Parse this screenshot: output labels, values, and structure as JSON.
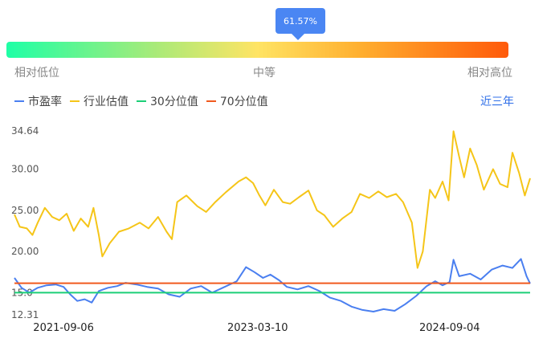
{
  "percentile": {
    "label": "61.57%",
    "value": 0.6157
  },
  "scale": {
    "low": "相对低位",
    "mid": "中等",
    "high": "相对高位"
  },
  "legend": [
    {
      "label": "市盈率",
      "color": "#4a7ff0"
    },
    {
      "label": "行业估值",
      "color": "#f5c518"
    },
    {
      "label": "30分位值",
      "color": "#1ccf77"
    },
    {
      "label": "70分位值",
      "color": "#f05a1e"
    }
  ],
  "range_label": "近三年",
  "chart_data": {
    "type": "line",
    "xlim": [
      "2021-04-20",
      "2025-04-20"
    ],
    "ylim": [
      12.31,
      34.64
    ],
    "y_ticks": [
      34.64,
      30.0,
      25.0,
      20.0,
      15.0,
      12.31
    ],
    "y_tick_labels": [
      "34.64",
      "30.00",
      "25.00",
      "20.00",
      "15.0",
      "12.31"
    ],
    "x_ticks": [
      "2021-09-06",
      "2023-03-10",
      "2024-09-04"
    ],
    "series": [
      {
        "name": "市盈率",
        "color": "#4a7ff0",
        "points": [
          [
            "2021-04-20",
            16.8
          ],
          [
            "2021-05-10",
            15.6
          ],
          [
            "2021-06-01",
            15.0
          ],
          [
            "2021-06-25",
            15.6
          ],
          [
            "2021-07-20",
            15.9
          ],
          [
            "2021-08-15",
            16.0
          ],
          [
            "2021-09-06",
            15.7
          ],
          [
            "2021-09-25",
            14.8
          ],
          [
            "2021-10-15",
            14.0
          ],
          [
            "2021-11-05",
            14.2
          ],
          [
            "2021-11-25",
            13.8
          ],
          [
            "2021-12-15",
            15.2
          ],
          [
            "2022-01-10",
            15.6
          ],
          [
            "2022-02-05",
            15.8
          ],
          [
            "2022-03-01",
            16.2
          ],
          [
            "2022-04-01",
            16.0
          ],
          [
            "2022-05-01",
            15.7
          ],
          [
            "2022-06-01",
            15.5
          ],
          [
            "2022-07-01",
            14.8
          ],
          [
            "2022-08-01",
            14.5
          ],
          [
            "2022-09-01",
            15.5
          ],
          [
            "2022-10-01",
            15.8
          ],
          [
            "2022-11-01",
            15.0
          ],
          [
            "2022-12-01",
            15.6
          ],
          [
            "2023-01-10",
            16.4
          ],
          [
            "2023-02-05",
            18.1
          ],
          [
            "2023-03-01",
            17.5
          ],
          [
            "2023-03-25",
            16.8
          ],
          [
            "2023-04-15",
            17.2
          ],
          [
            "2023-05-10",
            16.5
          ],
          [
            "2023-06-01",
            15.7
          ],
          [
            "2023-07-01",
            15.4
          ],
          [
            "2023-08-01",
            15.8
          ],
          [
            "2023-09-01",
            15.2
          ],
          [
            "2023-10-01",
            14.4
          ],
          [
            "2023-11-01",
            14.0
          ],
          [
            "2023-12-01",
            13.3
          ],
          [
            "2024-01-01",
            12.9
          ],
          [
            "2024-02-01",
            12.7
          ],
          [
            "2024-03-01",
            13.0
          ],
          [
            "2024-04-01",
            12.8
          ],
          [
            "2024-05-01",
            13.6
          ],
          [
            "2024-06-01",
            14.6
          ],
          [
            "2024-07-01",
            15.8
          ],
          [
            "2024-07-25",
            16.4
          ],
          [
            "2024-08-15",
            15.9
          ],
          [
            "2024-09-04",
            16.3
          ],
          [
            "2024-09-15",
            19.0
          ],
          [
            "2024-10-01",
            17.0
          ],
          [
            "2024-11-01",
            17.3
          ],
          [
            "2024-12-01",
            16.6
          ],
          [
            "2025-01-01",
            17.8
          ],
          [
            "2025-02-01",
            18.3
          ],
          [
            "2025-03-01",
            18.0
          ],
          [
            "2025-03-25",
            19.1
          ],
          [
            "2025-04-10",
            17.0
          ],
          [
            "2025-04-20",
            16.1
          ]
        ]
      },
      {
        "name": "行业估值",
        "color": "#f5c518",
        "points": [
          [
            "2021-04-20",
            24.5
          ],
          [
            "2021-05-05",
            23.0
          ],
          [
            "2021-05-25",
            22.8
          ],
          [
            "2021-06-10",
            22.0
          ],
          [
            "2021-06-25",
            23.5
          ],
          [
            "2021-07-15",
            25.3
          ],
          [
            "2021-08-05",
            24.2
          ],
          [
            "2021-08-25",
            23.8
          ],
          [
            "2021-09-15",
            24.6
          ],
          [
            "2021-10-05",
            22.5
          ],
          [
            "2021-10-25",
            24.0
          ],
          [
            "2021-11-15",
            23.0
          ],
          [
            "2021-11-30",
            25.3
          ],
          [
            "2021-12-15",
            22.0
          ],
          [
            "2021-12-25",
            19.4
          ],
          [
            "2022-01-15",
            21.0
          ],
          [
            "2022-02-10",
            22.4
          ],
          [
            "2022-03-10",
            22.8
          ],
          [
            "2022-04-10",
            23.5
          ],
          [
            "2022-05-05",
            22.8
          ],
          [
            "2022-06-01",
            24.2
          ],
          [
            "2022-06-25",
            22.4
          ],
          [
            "2022-07-10",
            21.5
          ],
          [
            "2022-07-25",
            26.0
          ],
          [
            "2022-08-20",
            26.8
          ],
          [
            "2022-09-20",
            25.5
          ],
          [
            "2022-10-15",
            24.8
          ],
          [
            "2022-11-10",
            26.0
          ],
          [
            "2022-12-10",
            27.2
          ],
          [
            "2023-01-15",
            28.5
          ],
          [
            "2023-02-05",
            29.0
          ],
          [
            "2023-02-25",
            28.3
          ],
          [
            "2023-03-15",
            26.8
          ],
          [
            "2023-04-01",
            25.6
          ],
          [
            "2023-04-25",
            27.5
          ],
          [
            "2023-05-20",
            26.0
          ],
          [
            "2023-06-10",
            25.8
          ],
          [
            "2023-07-05",
            26.6
          ],
          [
            "2023-08-01",
            27.4
          ],
          [
            "2023-08-25",
            25.0
          ],
          [
            "2023-09-15",
            24.4
          ],
          [
            "2023-10-10",
            23.0
          ],
          [
            "2023-11-05",
            24.0
          ],
          [
            "2023-12-01",
            24.8
          ],
          [
            "2023-12-25",
            27.0
          ],
          [
            "2024-01-20",
            26.5
          ],
          [
            "2024-02-15",
            27.3
          ],
          [
            "2024-03-10",
            26.6
          ],
          [
            "2024-04-05",
            27.0
          ],
          [
            "2024-04-25",
            26.0
          ],
          [
            "2024-05-20",
            23.5
          ],
          [
            "2024-06-05",
            18.0
          ],
          [
            "2024-06-20",
            20.0
          ],
          [
            "2024-07-10",
            27.5
          ],
          [
            "2024-07-25",
            26.5
          ],
          [
            "2024-08-15",
            28.5
          ],
          [
            "2024-09-01",
            26.2
          ],
          [
            "2024-09-15",
            34.6
          ],
          [
            "2024-10-01",
            31.5
          ],
          [
            "2024-10-15",
            29.0
          ],
          [
            "2024-11-01",
            32.5
          ],
          [
            "2024-11-20",
            30.5
          ],
          [
            "2024-12-10",
            27.5
          ],
          [
            "2025-01-05",
            30.0
          ],
          [
            "2025-01-25",
            28.2
          ],
          [
            "2025-02-15",
            27.8
          ],
          [
            "2025-03-01",
            32.0
          ],
          [
            "2025-03-20",
            29.5
          ],
          [
            "2025-04-05",
            26.8
          ],
          [
            "2025-04-20",
            28.9
          ]
        ]
      },
      {
        "name": "30分位值",
        "color": "#1ccf77",
        "constant": 15.0
      },
      {
        "name": "70分位值",
        "color": "#f05a1e",
        "constant": 16.15
      }
    ]
  }
}
